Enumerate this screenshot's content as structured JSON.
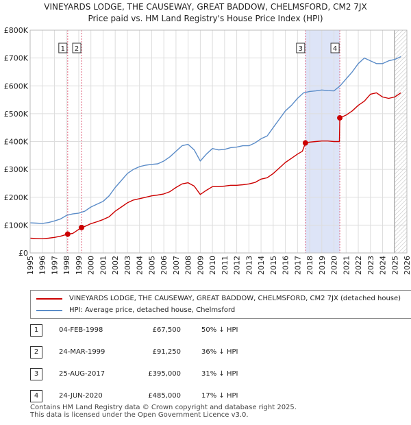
{
  "title_line1": "VINEYARDS LODGE, THE CAUSEWAY, GREAT BADDOW, CHELMSFORD, CM2 7JX",
  "title_line2": "Price paid vs. HM Land Registry's House Price Index (HPI)",
  "colors": {
    "price": "#cc0000",
    "hpi": "#5b8cc8",
    "shade": "#dde4f7",
    "marker_line": "#e0607a"
  },
  "chart_data": {
    "type": "line",
    "xlim": [
      1995,
      2026
    ],
    "ylim": [
      0,
      800000
    ],
    "x_ticks": [
      1995,
      1996,
      1997,
      1998,
      1999,
      2000,
      2001,
      2002,
      2003,
      2004,
      2005,
      2006,
      2007,
      2008,
      2009,
      2010,
      2011,
      2012,
      2013,
      2014,
      2015,
      2016,
      2017,
      2018,
      2019,
      2020,
      2021,
      2022,
      2023,
      2024,
      2025,
      2026
    ],
    "y_ticks": [
      {
        "value": 0,
        "label": "£0"
      },
      {
        "value": 100000,
        "label": "£100K"
      },
      {
        "value": 200000,
        "label": "£200K"
      },
      {
        "value": 300000,
        "label": "£300K"
      },
      {
        "value": 400000,
        "label": "£400K"
      },
      {
        "value": 500000,
        "label": "£500K"
      },
      {
        "value": 600000,
        "label": "£600K"
      },
      {
        "value": 700000,
        "label": "£700K"
      },
      {
        "value": 800000,
        "label": "£800K"
      }
    ],
    "grid": true,
    "shaded_period": [
      2017.65,
      2020.48
    ],
    "forecast_start": 2025.0,
    "series": [
      {
        "name": "hpi",
        "x": [
          1995,
          1995.5,
          1996,
          1996.5,
          1997,
          1997.5,
          1998,
          1998.5,
          1999,
          1999.5,
          2000,
          2000.5,
          2001,
          2001.5,
          2002,
          2002.5,
          2003,
          2003.5,
          2004,
          2004.5,
          2005,
          2005.5,
          2006,
          2006.5,
          2007,
          2007.5,
          2008,
          2008.5,
          2009,
          2009.5,
          2010,
          2010.5,
          2011,
          2011.5,
          2012,
          2012.5,
          2013,
          2013.5,
          2014,
          2014.5,
          2015,
          2015.5,
          2016,
          2016.5,
          2017,
          2017.5,
          2018,
          2018.5,
          2019,
          2019.5,
          2020,
          2020.5,
          2021,
          2021.5,
          2022,
          2022.5,
          2023,
          2023.5,
          2024,
          2024.5,
          2025,
          2025.5
        ],
        "values": [
          108000,
          107000,
          106000,
          109000,
          115000,
          122000,
          135000,
          140000,
          143000,
          150000,
          165000,
          175000,
          185000,
          205000,
          235000,
          260000,
          285000,
          300000,
          310000,
          315000,
          318000,
          320000,
          330000,
          345000,
          365000,
          385000,
          390000,
          370000,
          330000,
          355000,
          375000,
          370000,
          372000,
          378000,
          380000,
          385000,
          385000,
          395000,
          410000,
          420000,
          450000,
          480000,
          510000,
          530000,
          555000,
          575000,
          580000,
          582000,
          585000,
          583000,
          582000,
          600000,
          625000,
          650000,
          680000,
          700000,
          690000,
          680000,
          680000,
          690000,
          695000,
          705000
        ]
      },
      {
        "name": "price_paid",
        "x": [
          1995,
          1995.5,
          1996,
          1996.5,
          1997,
          1997.5,
          1998.09,
          1998.5,
          1999.23,
          1999.5,
          2000,
          2000.5,
          2001,
          2001.5,
          2002,
          2002.5,
          2003,
          2003.5,
          2004,
          2004.5,
          2005,
          2005.5,
          2006,
          2006.5,
          2007,
          2007.5,
          2008,
          2008.5,
          2009,
          2009.5,
          2010,
          2010.5,
          2011,
          2011.5,
          2012,
          2012.5,
          2013,
          2013.5,
          2014,
          2014.5,
          2015,
          2015.5,
          2016,
          2016.5,
          2017,
          2017.4,
          2017.65,
          2018,
          2018.5,
          2019,
          2019.5,
          2020,
          2020.45,
          2020.48,
          2021,
          2021.5,
          2022,
          2022.5,
          2023,
          2023.5,
          2024,
          2024.5,
          2025,
          2025.5
        ],
        "values": [
          53000,
          52000,
          51000,
          53000,
          56000,
          60000,
          67500,
          70000,
          91250,
          95000,
          105000,
          112000,
          120000,
          130000,
          150000,
          165000,
          180000,
          190000,
          195000,
          200000,
          205000,
          208000,
          212000,
          220000,
          235000,
          248000,
          252000,
          240000,
          210000,
          225000,
          238000,
          238000,
          240000,
          243000,
          243000,
          245000,
          248000,
          253000,
          265000,
          270000,
          285000,
          305000,
          325000,
          340000,
          355000,
          365000,
          395000,
          398000,
          400000,
          402000,
          402000,
          400000,
          400000,
          485000,
          495000,
          510000,
          530000,
          545000,
          570000,
          575000,
          560000,
          555000,
          560000,
          575000
        ]
      }
    ],
    "sales": [
      {
        "label": "1",
        "x": 1998.09,
        "y": 67500
      },
      {
        "label": "2",
        "x": 1999.23,
        "y": 91250
      },
      {
        "label": "3",
        "x": 2017.65,
        "y": 395000
      },
      {
        "label": "4",
        "x": 2020.48,
        "y": 485000
      }
    ]
  },
  "legend": {
    "price_label": "VINEYARDS LODGE, THE CAUSEWAY, GREAT BADDOW, CHELMSFORD, CM2 7JX (detached house)",
    "hpi_label": "HPI: Average price, detached house, Chelmsford"
  },
  "transactions": [
    {
      "num": "1",
      "date": "04-FEB-1998",
      "price": "£67,500",
      "hpi": "50% ↓ HPI"
    },
    {
      "num": "2",
      "date": "24-MAR-1999",
      "price": "£91,250",
      "hpi": "36% ↓ HPI"
    },
    {
      "num": "3",
      "date": "25-AUG-2017",
      "price": "£395,000",
      "hpi": "31% ↓ HPI"
    },
    {
      "num": "4",
      "date": "24-JUN-2020",
      "price": "£485,000",
      "hpi": "17% ↓ HPI"
    }
  ],
  "footer_line1": "Contains HM Land Registry data © Crown copyright and database right 2025.",
  "footer_line2": "This data is licensed under the Open Government Licence v3.0."
}
